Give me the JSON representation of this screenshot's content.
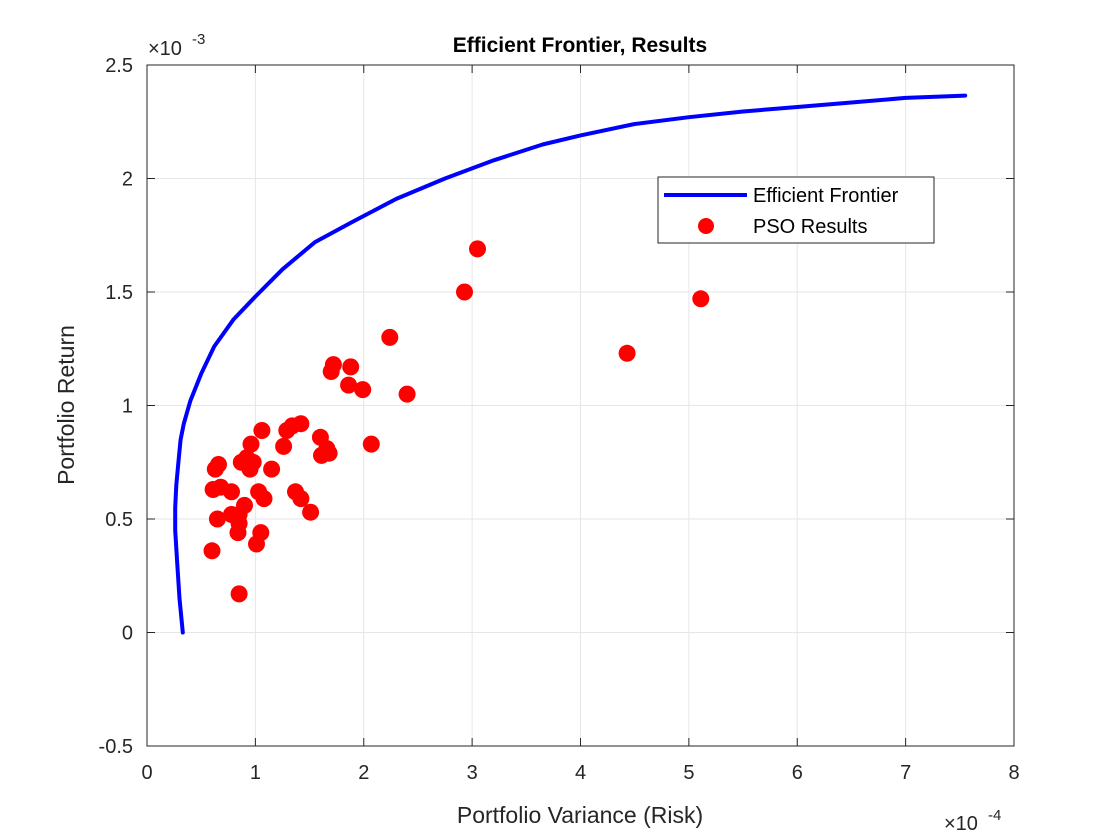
{
  "chart_data": {
    "type": "scatter",
    "title": "Efficient Frontier, Results",
    "xlabel": "Portfolio Variance (Risk)",
    "ylabel": "Portfolio Return",
    "x_multiplier_label": "×10",
    "x_multiplier_exp": "-4",
    "y_multiplier_label": "×10",
    "y_multiplier_exp": "-3",
    "xlim": [
      0,
      8
    ],
    "ylim": [
      -0.5,
      2.5
    ],
    "x_ticks": [
      0,
      1,
      2,
      3,
      4,
      5,
      6,
      7,
      8
    ],
    "y_ticks": [
      -0.5,
      0,
      0.5,
      1,
      1.5,
      2,
      2.5
    ],
    "x_tick_labels": [
      "0",
      "1",
      "2",
      "3",
      "4",
      "5",
      "6",
      "7",
      "8"
    ],
    "y_tick_labels": [
      "-0.5",
      "0",
      "0.5",
      "1",
      "1.5",
      "2",
      "2.5"
    ],
    "grid": true,
    "legend_position": "top-right",
    "series": [
      {
        "name": "Efficient Frontier",
        "kind": "line",
        "color": "#0000ff",
        "x": [
          0.33,
          0.3,
          0.28,
          0.26,
          0.26,
          0.27,
          0.29,
          0.31,
          0.34,
          0.4,
          0.5,
          0.62,
          0.8,
          1.0,
          1.25,
          1.55,
          1.9,
          2.3,
          2.75,
          3.2,
          3.65,
          4.0,
          4.5,
          5.0,
          5.5,
          6.0,
          6.5,
          7.0,
          7.55
        ],
        "y": [
          0.0,
          0.15,
          0.3,
          0.45,
          0.55,
          0.65,
          0.75,
          0.85,
          0.92,
          1.02,
          1.14,
          1.26,
          1.38,
          1.48,
          1.6,
          1.72,
          1.81,
          1.91,
          2.0,
          2.08,
          2.15,
          2.19,
          2.24,
          2.27,
          2.295,
          2.315,
          2.335,
          2.355,
          2.365
        ]
      },
      {
        "name": "PSO Results",
        "kind": "scatter",
        "color": "#ff0000",
        "points": [
          [
            0.6,
            0.36
          ],
          [
            0.61,
            0.63
          ],
          [
            0.63,
            0.72
          ],
          [
            0.65,
            0.5
          ],
          [
            0.66,
            0.74
          ],
          [
            0.68,
            0.64
          ],
          [
            0.78,
            0.62
          ],
          [
            0.78,
            0.52
          ],
          [
            0.85,
            0.17
          ],
          [
            0.84,
            0.44
          ],
          [
            0.85,
            0.48
          ],
          [
            0.85,
            0.52
          ],
          [
            0.87,
            0.75
          ],
          [
            0.9,
            0.56
          ],
          [
            0.92,
            0.77
          ],
          [
            0.95,
            0.72
          ],
          [
            0.96,
            0.83
          ],
          [
            0.98,
            0.75
          ],
          [
            1.01,
            0.39
          ],
          [
            1.03,
            0.62
          ],
          [
            1.05,
            0.44
          ],
          [
            1.06,
            0.89
          ],
          [
            1.08,
            0.59
          ],
          [
            1.15,
            0.72
          ],
          [
            1.26,
            0.82
          ],
          [
            1.29,
            0.89
          ],
          [
            1.34,
            0.91
          ],
          [
            1.37,
            0.62
          ],
          [
            1.42,
            0.59
          ],
          [
            1.42,
            0.92
          ],
          [
            1.51,
            0.53
          ],
          [
            1.6,
            0.86
          ],
          [
            1.61,
            0.78
          ],
          [
            1.66,
            0.81
          ],
          [
            1.68,
            0.79
          ],
          [
            1.7,
            1.15
          ],
          [
            1.72,
            1.18
          ],
          [
            1.86,
            1.09
          ],
          [
            1.88,
            1.17
          ],
          [
            1.99,
            1.07
          ],
          [
            2.07,
            0.83
          ],
          [
            2.24,
            1.3
          ],
          [
            2.4,
            1.05
          ],
          [
            2.93,
            1.5
          ],
          [
            3.05,
            1.69
          ],
          [
            4.43,
            1.23
          ],
          [
            5.11,
            1.47
          ]
        ]
      }
    ]
  }
}
